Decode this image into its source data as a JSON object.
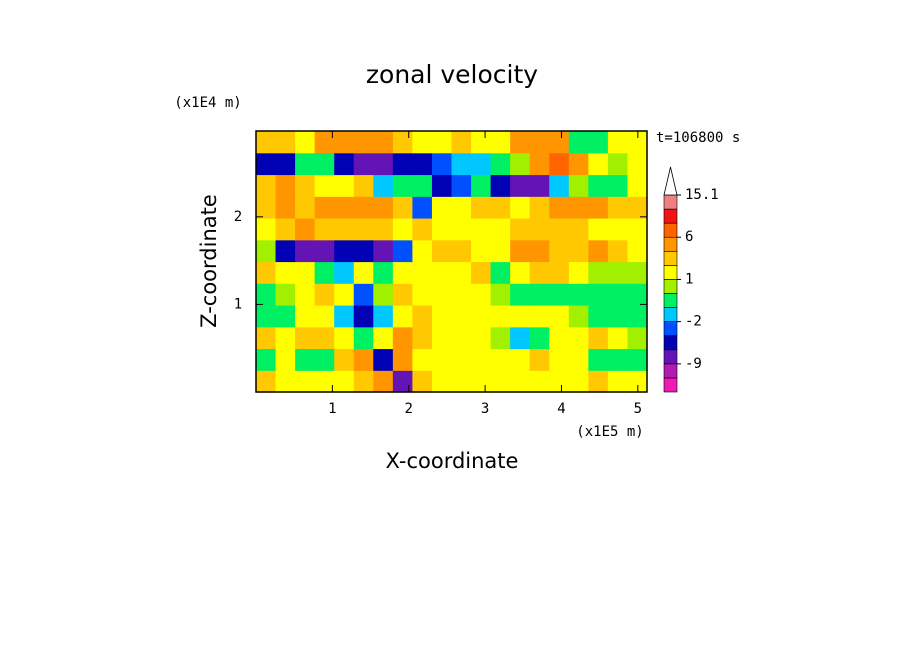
{
  "chart_data": {
    "type": "contour",
    "title": "zonal velocity",
    "x_label": "X-coordinate",
    "y_label": "Z-coordinate",
    "x_unit": "(x1E5 m)",
    "y_unit": "(x1E4 m)",
    "annotation": "t=106800 s",
    "xlim": [
      0,
      5.12
    ],
    "ylim": [
      0,
      2.98
    ],
    "xticks": [
      1,
      2,
      3,
      4,
      5
    ],
    "yticks": [
      1,
      2
    ],
    "x": [
      0.128,
      0.384,
      0.64,
      0.896,
      1.152,
      1.408,
      1.664,
      1.92,
      2.176,
      2.432,
      2.688,
      2.944,
      3.2,
      3.456,
      3.712,
      3.968,
      4.224,
      4.48,
      4.736,
      4.992
    ],
    "y": [
      0.124,
      0.373,
      0.621,
      0.869,
      1.118,
      1.366,
      1.614,
      1.863,
      2.111,
      2.359,
      2.608,
      2.856
    ],
    "z": [
      [
        2.5,
        1.5,
        1.5,
        1.5,
        1.5,
        2.5,
        4,
        -8,
        2.5,
        1.5,
        1.5,
        1.5,
        1.5,
        1.5,
        1.5,
        1.5,
        1.5,
        2.5,
        1.5,
        1.5
      ],
      [
        -0.5,
        1.5,
        -0.5,
        -0.5,
        2.5,
        4,
        -6,
        4,
        1.5,
        1.5,
        1.5,
        1.5,
        1.5,
        1.5,
        2.5,
        1.5,
        1.5,
        -0.5,
        -0.5,
        -0.5
      ],
      [
        2.5,
        1.5,
        2.5,
        2.5,
        1.5,
        -1,
        1.5,
        4,
        2.5,
        1.5,
        1.5,
        1.5,
        0.5,
        -1.5,
        -0.5,
        1.5,
        1.5,
        2.5,
        1.5,
        0.5
      ],
      [
        -0.5,
        -0.5,
        1.5,
        1.5,
        -1.5,
        -3.5,
        -1.5,
        1.5,
        2.5,
        1.5,
        1.5,
        1.5,
        1.5,
        1.5,
        1.5,
        1.5,
        0.5,
        -0.5,
        -0.5,
        -0.5
      ],
      [
        -0.5,
        0.5,
        1.5,
        2.5,
        1.5,
        -2.5,
        0.5,
        2.5,
        1.5,
        1.5,
        1.5,
        1.5,
        0.5,
        -0.5,
        -0.5,
        -0.5,
        -0.5,
        -0.5,
        -0.5,
        -0.5
      ],
      [
        2.5,
        1.5,
        1.5,
        -0.5,
        -1.5,
        1.5,
        -0.5,
        1.5,
        1.5,
        1.5,
        1.5,
        2.5,
        -0.5,
        1.5,
        2.5,
        2.5,
        1.5,
        0.5,
        0.5,
        0.5
      ],
      [
        0.5,
        -6,
        -8,
        -8,
        -6,
        -6,
        -8,
        -2.5,
        1.5,
        2.5,
        2.5,
        1.5,
        1.5,
        4,
        4,
        2.5,
        2.5,
        4,
        2.5,
        1.5
      ],
      [
        1.5,
        2.5,
        4,
        2.5,
        2.5,
        2.5,
        2.5,
        1.5,
        2.5,
        1.5,
        1.5,
        1.5,
        1.5,
        2.5,
        2.5,
        2.5,
        2.5,
        1.5,
        1.5,
        1.5
      ],
      [
        2.5,
        4,
        2.5,
        4,
        4,
        5,
        5,
        2.5,
        -2.5,
        1.5,
        1.5,
        2.5,
        2.5,
        1.5,
        2.5,
        4,
        4,
        4,
        2.5,
        2.5
      ],
      [
        2.5,
        4,
        2.5,
        1.5,
        1.5,
        2.5,
        -1.5,
        -0.5,
        -1,
        -3.5,
        -2.5,
        -1,
        -4,
        -8,
        -7,
        -1.5,
        0.5,
        -0.5,
        -0.5,
        1.5
      ],
      [
        -6,
        -4,
        -1,
        -0.5,
        -6,
        -8,
        -8,
        -6,
        -4,
        -2.5,
        -1.5,
        -1.5,
        -0.5,
        0.5,
        4,
        7,
        4,
        1.5,
        0.5,
        1.5
      ],
      [
        2,
        2,
        1.5,
        3,
        4,
        4,
        4,
        2.5,
        1.5,
        1.5,
        2.5,
        1.5,
        1.5,
        4,
        5,
        4,
        -0.5,
        -0.5,
        1.5,
        1.5
      ]
    ],
    "colorbar": {
      "levels": [
        -15,
        -12,
        -9,
        -6,
        -3,
        -2,
        -1,
        0,
        1,
        2,
        3,
        6,
        9,
        12,
        15.1
      ],
      "colors": [
        "#f01ab4",
        "#b41ab4",
        "#6414b4",
        "#0000b4",
        "#0050ff",
        "#00c8ff",
        "#00f064",
        "#a0f000",
        "#ffff00",
        "#ffc800",
        "#ff9600",
        "#ff6400",
        "#f01414",
        "#f08080"
      ],
      "extend_color": "#ffffff",
      "ticks": [
        15.1,
        6,
        1,
        -2,
        -9
      ]
    }
  }
}
